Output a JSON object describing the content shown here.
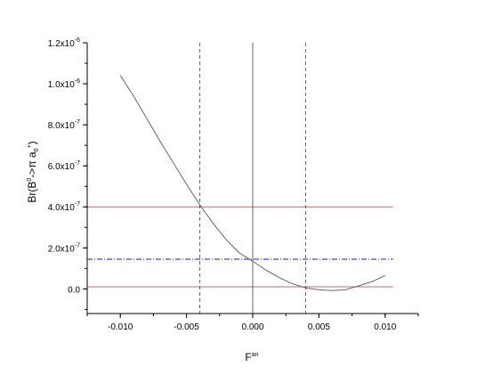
{
  "chart_data": {
    "type": "line",
    "xlabel": "F",
    "xlabel_sup": "an",
    "ylabel_parts": [
      "Br(B",
      "0",
      "->π a",
      "0",
      "+",
      ")"
    ],
    "xlim": [
      -0.0125,
      0.0125
    ],
    "ylim": [
      -1.2e-07,
      1.2e-06
    ],
    "x_ticks": [
      {
        "value": -0.01,
        "label": "-0.010"
      },
      {
        "value": -0.005,
        "label": "-0.005"
      },
      {
        "value": 0.0,
        "label": "0.000"
      },
      {
        "value": 0.005,
        "label": "0.005"
      },
      {
        "value": 0.01,
        "label": "0.010"
      }
    ],
    "y_ticks": [
      {
        "value": 0,
        "base": "0.0",
        "exp": ""
      },
      {
        "value": 2e-07,
        "base": "2.0x10",
        "exp": "-7"
      },
      {
        "value": 4e-07,
        "base": "4.0x10",
        "exp": "-7"
      },
      {
        "value": 6e-07,
        "base": "6.0x10",
        "exp": "-7"
      },
      {
        "value": 8e-07,
        "base": "8.0x10",
        "exp": "-7"
      },
      {
        "value": 1e-06,
        "base": "1.0x10",
        "exp": "-6"
      },
      {
        "value": 1.2e-06,
        "base": "1.2x10",
        "exp": "-6"
      }
    ],
    "curve": {
      "color": "#555555",
      "x": [
        -0.01,
        -0.009,
        -0.008,
        -0.007,
        -0.006,
        -0.005,
        -0.004,
        -0.003,
        -0.002,
        -0.001,
        0.0,
        0.001,
        0.002,
        0.003,
        0.004,
        0.005,
        0.006,
        0.007,
        0.008,
        0.009,
        0.01
      ],
      "y": [
        1.04e-06,
        9.4e-07,
        8.3e-07,
        7.2e-07,
        6.15e-07,
        5.1e-07,
        4.1e-07,
        3.2e-07,
        2.4e-07,
        1.75e-07,
        1.35e-07,
        9.2e-08,
        5.5e-08,
        2.5e-08,
        5e-09,
        -4e-09,
        -8e-09,
        -4e-09,
        1.5e-08,
        3.5e-08,
        6.5e-08
      ]
    },
    "horizontal_lines": [
      {
        "y": 4e-07,
        "color": "#e06060",
        "style": "solid"
      },
      {
        "y": 1.45e-07,
        "color": "#1a1aa8",
        "style": "dashdot"
      },
      {
        "y": 1e-08,
        "color": "#e06060",
        "style": "solid"
      }
    ],
    "vertical_lines": [
      {
        "x": -0.004,
        "color": "#444444",
        "style": "dashed"
      },
      {
        "x": 0.0,
        "color": "#444444",
        "style": "solid"
      },
      {
        "x": 0.004,
        "color": "#444444",
        "style": "dashed"
      }
    ],
    "grid": false
  }
}
